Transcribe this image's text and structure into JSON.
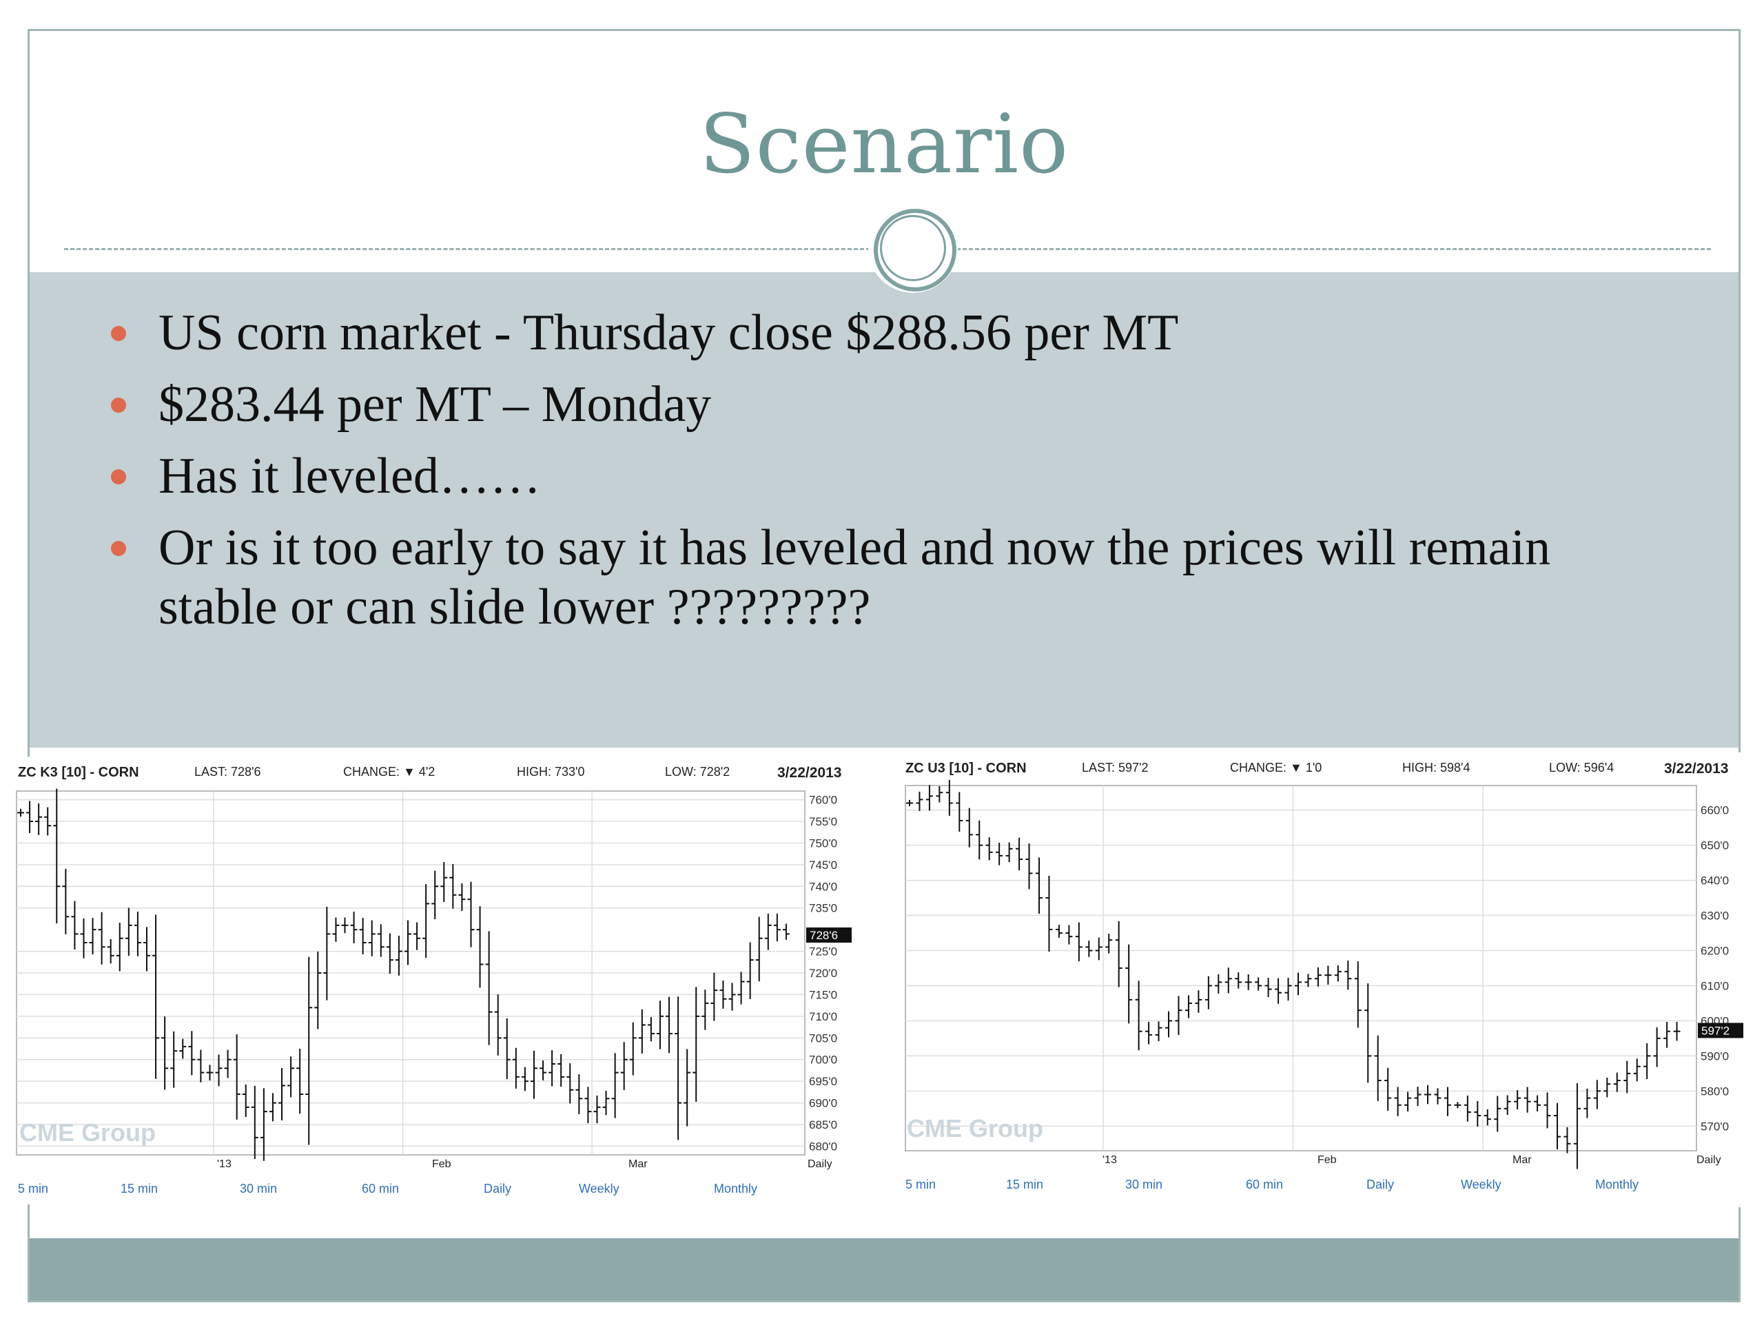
{
  "slide": {
    "title": "Scenario",
    "bullets": [
      "US corn market  - Thursday close  $288.56 per MT",
      " $283.44 per MT – Monday",
      "Has it leveled……",
      "Or is it too early to say it has leveled and now the prices will remain stable or can slide lower ?????????"
    ],
    "colors": {
      "title": "#6f9795",
      "band": "#c4d0d3",
      "bullet": "#dd6a4e",
      "footer": "#8fa9a9"
    }
  },
  "charts": [
    {
      "header": {
        "symbol": "ZC K3 [10] - CORN",
        "last": "LAST: 728'6",
        "change": "CHANGE: ▼ 4'2",
        "high": "HIGH: 733'0",
        "low": "LOW: 728'2",
        "date": "3/22/2013"
      },
      "xlabels": [
        "'13",
        "Feb",
        "Mar",
        "Daily"
      ],
      "links": [
        "5 min",
        "15 min",
        "30 min",
        "60 min",
        "Daily",
        "Weekly",
        "Monthly"
      ],
      "watermark": "CME Group",
      "chart_data": {
        "type": "bar",
        "yticks": [
          "760'0",
          "755'0",
          "750'0",
          "745'0",
          "740'0",
          "735'0",
          "725'0",
          "720'0",
          "715'0",
          "710'0",
          "705'0",
          "700'0",
          "695'0",
          "690'0",
          "685'0",
          "680'0"
        ],
        "ylim": [
          678,
          762
        ],
        "last_label": "728'6",
        "last_value": 728.75,
        "x_dividers": [
          0.25,
          0.49,
          0.73
        ],
        "closes": [
          757,
          755,
          756,
          754,
          740,
          733,
          729,
          727,
          730,
          726,
          724,
          728,
          731,
          727,
          724,
          705,
          698,
          702,
          703,
          700,
          697,
          697,
          698,
          700,
          692,
          689,
          682,
          688,
          690,
          694,
          698,
          692,
          712,
          720,
          729,
          731,
          731,
          730,
          727,
          729,
          726,
          723,
          725,
          729,
          728,
          736,
          740,
          742,
          738,
          737,
          730,
          722,
          711,
          705,
          700,
          696,
          695,
          698,
          697,
          699,
          696,
          693,
          691,
          688,
          689,
          691,
          697,
          700,
          705,
          708,
          706,
          710,
          706,
          690,
          697,
          710,
          713,
          716,
          714,
          715,
          718,
          723,
          728,
          731,
          730,
          729
        ]
      }
    },
    {
      "header": {
        "symbol": "ZC U3 [10] - CORN",
        "last": "LAST: 597'2",
        "change": "CHANGE: ▼ 1'0",
        "high": "HIGH: 598'4",
        "low": "LOW: 596'4",
        "date": "3/22/2013"
      },
      "xlabels": [
        "'13",
        "Feb",
        "Mar",
        "Daily"
      ],
      "links": [
        "5 min",
        "15 min",
        "30 min",
        "60 min",
        "Daily",
        "Weekly",
        "Monthly"
      ],
      "watermark": "CME Group",
      "chart_data": {
        "type": "bar",
        "yticks": [
          "660'0",
          "650'0",
          "640'0",
          "630'0",
          "620'0",
          "610'0",
          "600'0",
          "590'0",
          "580'0",
          "570'0"
        ],
        "ylim": [
          563,
          667
        ],
        "last_label": "597'2",
        "last_value": 597.25,
        "x_dividers": [
          0.25,
          0.49,
          0.73
        ],
        "closes": [
          662,
          663,
          664,
          665,
          662,
          657,
          653,
          650,
          648,
          647,
          649,
          646,
          642,
          635,
          626,
          625,
          624,
          621,
          620,
          621,
          623,
          615,
          606,
          597,
          596,
          598,
          600,
          603,
          605,
          606,
          610,
          611,
          612,
          611,
          611,
          610,
          609,
          608,
          610,
          611,
          612,
          613,
          613,
          614,
          612,
          603,
          590,
          583,
          578,
          576,
          578,
          579,
          579,
          578,
          576,
          576,
          574,
          573,
          572,
          575,
          577,
          578,
          577,
          576,
          573,
          567,
          565,
          575,
          578,
          580,
          582,
          583,
          585,
          587,
          590,
          595,
          597,
          597
        ]
      }
    }
  ]
}
